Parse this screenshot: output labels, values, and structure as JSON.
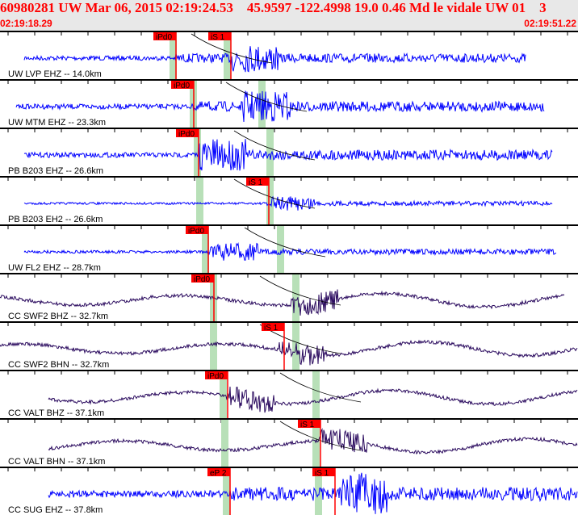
{
  "header": {
    "title": "60980281 UW Mar 06, 2015 02:19:24.53    45.9597 -122.4998 19.0 0.46 Md le vidale UW 01    3",
    "start_time": "02:19:18.29",
    "end_time": "02:19:51.22"
  },
  "colors": {
    "header_text": "#ff0000",
    "short_period": "#0000ff",
    "broadband": "#2a0a5e",
    "pick": "#ff0000",
    "window": "#b8e0b8"
  },
  "traces": [
    {
      "label": "UW LVP EHZ -- 14.0km",
      "picks": [
        "iPd0",
        "iS 1"
      ]
    },
    {
      "label": "UW MTM EHZ -- 23.3km",
      "picks": [
        "iPd0"
      ]
    },
    {
      "label": "PB B203 EHZ -- 26.6km",
      "picks": [
        "iPd0"
      ]
    },
    {
      "label": "PB B203 EH2 -- 26.6km",
      "picks": [
        "iS 1"
      ]
    },
    {
      "label": "UW FL2 EHZ -- 28.7km",
      "picks": [
        "iPd0"
      ]
    },
    {
      "label": "CC SWF2 BHZ -- 32.7km",
      "picks": [
        "iPd0"
      ]
    },
    {
      "label": "CC SWF2 BHN -- 32.7km",
      "picks": [
        "iS 1"
      ]
    },
    {
      "label": "CC VALT BHZ -- 37.1km",
      "picks": [
        "iPd0"
      ]
    },
    {
      "label": "CC VALT BHN -- 37.1km",
      "picks": [
        "iS 1"
      ]
    },
    {
      "label": "CC SUG EHZ -- 37.8km",
      "picks": [
        "eP 2",
        "iS 1"
      ]
    }
  ]
}
